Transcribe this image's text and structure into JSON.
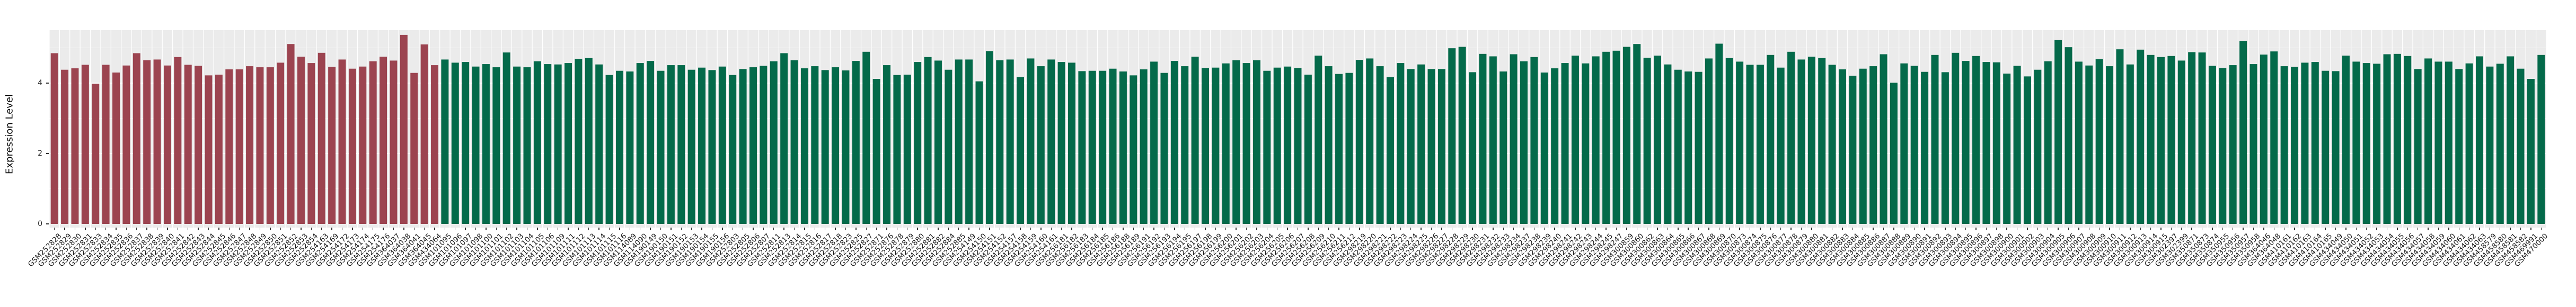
{
  "chart_data": {
    "type": "bar",
    "title": "",
    "xlabel": "",
    "ylabel": "Expression Level",
    "ylim": [
      -0.1,
      5.5
    ],
    "yticks": [
      0,
      2,
      4
    ],
    "ytick_labels": [
      "0",
      "2",
      "4"
    ],
    "yticks_minor": [
      1,
      3,
      5
    ],
    "grid": true,
    "legend_position": "none",
    "panel_background": "#EBEBEB",
    "grid_color": "#FFFFFF",
    "axis_text_color": "#1A1A1A",
    "group_split_index": 38,
    "group_colors": [
      "#9C4450",
      "#046A4A"
    ],
    "group_color_names": [
      "dark-red",
      "dark-green"
    ],
    "categories": [
      "GSM252828",
      "GSM252829",
      "GSM252830",
      "GSM252831",
      "GSM252833",
      "GSM252834",
      "GSM252835",
      "GSM252836",
      "GSM252837",
      "GSM252838",
      "GSM252839",
      "GSM252840",
      "GSM252841",
      "GSM252842",
      "GSM252843",
      "GSM252844",
      "GSM252845",
      "GSM252846",
      "GSM252847",
      "GSM252848",
      "GSM252849",
      "GSM252850",
      "GSM252851",
      "GSM252852",
      "GSM252853",
      "GSM252854",
      "GSM254163",
      "GSM254169",
      "GSM254172",
      "GSM254173",
      "GSM254174",
      "GSM254175",
      "GSM254176",
      "GSM364037",
      "GSM364038",
      "GSM364041",
      "GSM364045",
      "GSM434064",
      "GSM101095",
      "GSM101096",
      "GSM101097",
      "GSM101098",
      "GSM101100",
      "GSM101101",
      "GSM101102",
      "GSM101103",
      "GSM101104",
      "GSM101105",
      "GSM101106",
      "GSM101109",
      "GSM101111",
      "GSM101112",
      "GSM101113",
      "GSM101114",
      "GSM101115",
      "GSM101116",
      "GSM114089",
      "GSM114090",
      "GSM190149",
      "GSM190150",
      "GSM190151",
      "GSM190152",
      "GSM190153",
      "GSM190154",
      "GSM190155",
      "GSM190156",
      "GSM252803",
      "GSM252805",
      "GSM252806",
      "GSM252807",
      "GSM252811",
      "GSM252813",
      "GSM252814",
      "GSM252815",
      "GSM252816",
      "GSM252817",
      "GSM252818",
      "GSM252823",
      "GSM252825",
      "GSM252827",
      "GSM252871",
      "GSM252876",
      "GSM252878",
      "GSM252879",
      "GSM252880",
      "GSM252881",
      "GSM252882",
      "GSM252884",
      "GSM252885",
      "GSM254149",
      "GSM254150",
      "GSM254151",
      "GSM254152",
      "GSM254157",
      "GSM254158",
      "GSM254159",
      "GSM254160",
      "GSM254161",
      "GSM256181",
      "GSM256182",
      "GSM256183",
      "GSM256184",
      "GSM256185",
      "GSM256186",
      "GSM256188",
      "GSM256189",
      "GSM256191",
      "GSM256192",
      "GSM256193",
      "GSM256194",
      "GSM256195",
      "GSM256197",
      "GSM256198",
      "GSM256199",
      "GSM256200",
      "GSM256201",
      "GSM256202",
      "GSM256203",
      "GSM256204",
      "GSM256205",
      "GSM256206",
      "GSM256207",
      "GSM256208",
      "GSM256209",
      "GSM256210",
      "GSM256211",
      "GSM256212",
      "GSM298219",
      "GSM298220",
      "GSM298221",
      "GSM298222",
      "GSM298223",
      "GSM298224",
      "GSM298225",
      "GSM298226",
      "GSM298227",
      "GSM298228",
      "GSM298229",
      "GSM298230",
      "GSM298231",
      "GSM298232",
      "GSM298233",
      "GSM298234",
      "GSM298237",
      "GSM298238",
      "GSM298239",
      "GSM298240",
      "GSM298241",
      "GSM298242",
      "GSM298243",
      "GSM298244",
      "GSM298245",
      "GSM298247",
      "GSM300859",
      "GSM300860",
      "GSM300862",
      "GSM300863",
      "GSM300864",
      "GSM300865",
      "GSM300866",
      "GSM300867",
      "GSM300868",
      "GSM300869",
      "GSM300870",
      "GSM300873",
      "GSM300874",
      "GSM300875",
      "GSM300876",
      "GSM300877",
      "GSM300878",
      "GSM300879",
      "GSM300880",
      "GSM300881",
      "GSM300882",
      "GSM300883",
      "GSM300884",
      "GSM300885",
      "GSM300886",
      "GSM300887",
      "GSM300888",
      "GSM300889",
      "GSM300890",
      "GSM300891",
      "GSM300892",
      "GSM300893",
      "GSM300894",
      "GSM300895",
      "GSM300896",
      "GSM300897",
      "GSM300898",
      "GSM300900",
      "GSM300901",
      "GSM300902",
      "GSM300903",
      "GSM300904",
      "GSM300905",
      "GSM300906",
      "GSM300907",
      "GSM300908",
      "GSM300909",
      "GSM300910",
      "GSM300911",
      "GSM300912",
      "GSM300913",
      "GSM300914",
      "GSM300915",
      "GSM302397",
      "GSM302399",
      "GSM350871",
      "GSM350873",
      "GSM350874",
      "GSM350955",
      "GSM350956",
      "GSM350957",
      "GSM350958",
      "GSM364046",
      "GSM364048",
      "GSM410161",
      "GSM410162",
      "GSM410163",
      "GSM410164",
      "GSM410165",
      "GSM434049",
      "GSM434050",
      "GSM434051",
      "GSM434052",
      "GSM434053",
      "GSM434054",
      "GSM434055",
      "GSM434056",
      "GSM434057",
      "GSM434058",
      "GSM434059",
      "GSM434060",
      "GSM434061",
      "GSM434062",
      "GSM434063",
      "GSM458579",
      "GSM458580",
      "GSM458581",
      "GSM458582",
      "GSM469991",
      "GSM470000"
    ],
    "values": [
      4.85,
      4.38,
      4.42,
      4.52,
      3.98,
      4.52,
      4.3,
      4.5,
      4.85,
      4.65,
      4.67,
      4.5,
      4.74,
      4.52,
      4.49,
      4.22,
      4.24,
      4.39,
      4.39,
      4.48,
      4.45,
      4.45,
      4.58,
      5.11,
      4.75,
      4.57,
      4.86,
      4.46,
      4.67,
      4.41,
      4.47,
      4.62,
      4.75,
      4.64,
      5.37,
      4.29,
      5.1,
      4.51,
      4.67,
      4.58,
      4.6,
      4.47,
      4.54,
      4.45,
      4.87,
      4.47,
      4.45,
      4.62,
      4.54,
      4.53,
      4.57,
      4.69,
      4.71,
      4.53,
      4.23,
      4.35,
      4.33,
      4.57,
      4.63,
      4.35,
      4.51,
      4.51,
      4.38,
      4.44,
      4.37,
      4.47,
      4.23,
      4.4,
      4.45,
      4.49,
      4.62,
      4.85,
      4.65,
      4.42,
      4.48,
      4.37,
      4.45,
      4.36,
      4.63,
      4.89,
      4.12,
      4.51,
      4.23,
      4.24,
      4.6,
      4.74,
      4.64,
      4.38,
      4.67,
      4.67,
      4.05,
      4.91,
      4.65,
      4.67,
      4.17,
      4.7,
      4.48,
      4.67,
      4.6,
      4.58,
      4.34,
      4.35,
      4.35,
      4.41,
      4.33,
      4.22,
      4.39,
      4.61,
      4.29,
      4.63,
      4.48,
      4.75,
      4.43,
      4.44,
      4.56,
      4.65,
      4.57,
      4.65,
      4.35,
      4.44,
      4.47,
      4.43,
      4.24,
      4.78,
      4.48,
      4.26,
      4.29,
      4.66,
      4.7,
      4.48,
      4.17,
      4.57,
      4.4,
      4.53,
      4.4,
      4.4,
      4.99,
      5.03,
      4.31,
      4.83,
      4.76,
      4.33,
      4.82,
      4.62,
      4.74,
      4.3,
      4.42,
      4.57,
      4.78,
      4.56,
      4.76,
      4.89,
      4.92,
      5.03,
      5.11,
      4.72,
      4.78,
      4.53,
      4.38,
      4.33,
      4.32,
      4.7,
      5.12,
      4.71,
      4.61,
      4.52,
      4.52,
      4.8,
      4.44,
      4.89,
      4.67,
      4.75,
      4.71,
      4.52,
      4.39,
      4.21,
      4.41,
      4.48,
      4.82,
      4.01,
      4.56,
      4.49,
      4.32,
      4.8,
      4.31,
      4.86,
      4.63,
      4.77,
      4.6,
      4.59,
      4.27,
      4.49,
      4.19,
      4.38,
      4.62,
      5.22,
      5.02,
      4.61,
      4.5,
      4.68,
      4.48,
      4.96,
      4.53,
      4.95,
      4.8,
      4.74,
      4.77,
      4.64,
      4.88,
      4.87,
      4.49,
      4.43,
      4.51,
      5.2,
      4.54,
      4.81,
      4.9,
      4.48,
      4.46,
      4.58,
      4.6,
      4.35,
      4.34,
      4.78,
      4.61,
      4.57,
      4.55,
      4.82,
      4.83,
      4.77,
      4.4,
      4.7,
      4.61,
      4.61,
      4.4,
      4.56,
      4.76,
      4.47,
      4.55,
      4.76,
      4.41,
      4.12,
      4.8
    ]
  }
}
